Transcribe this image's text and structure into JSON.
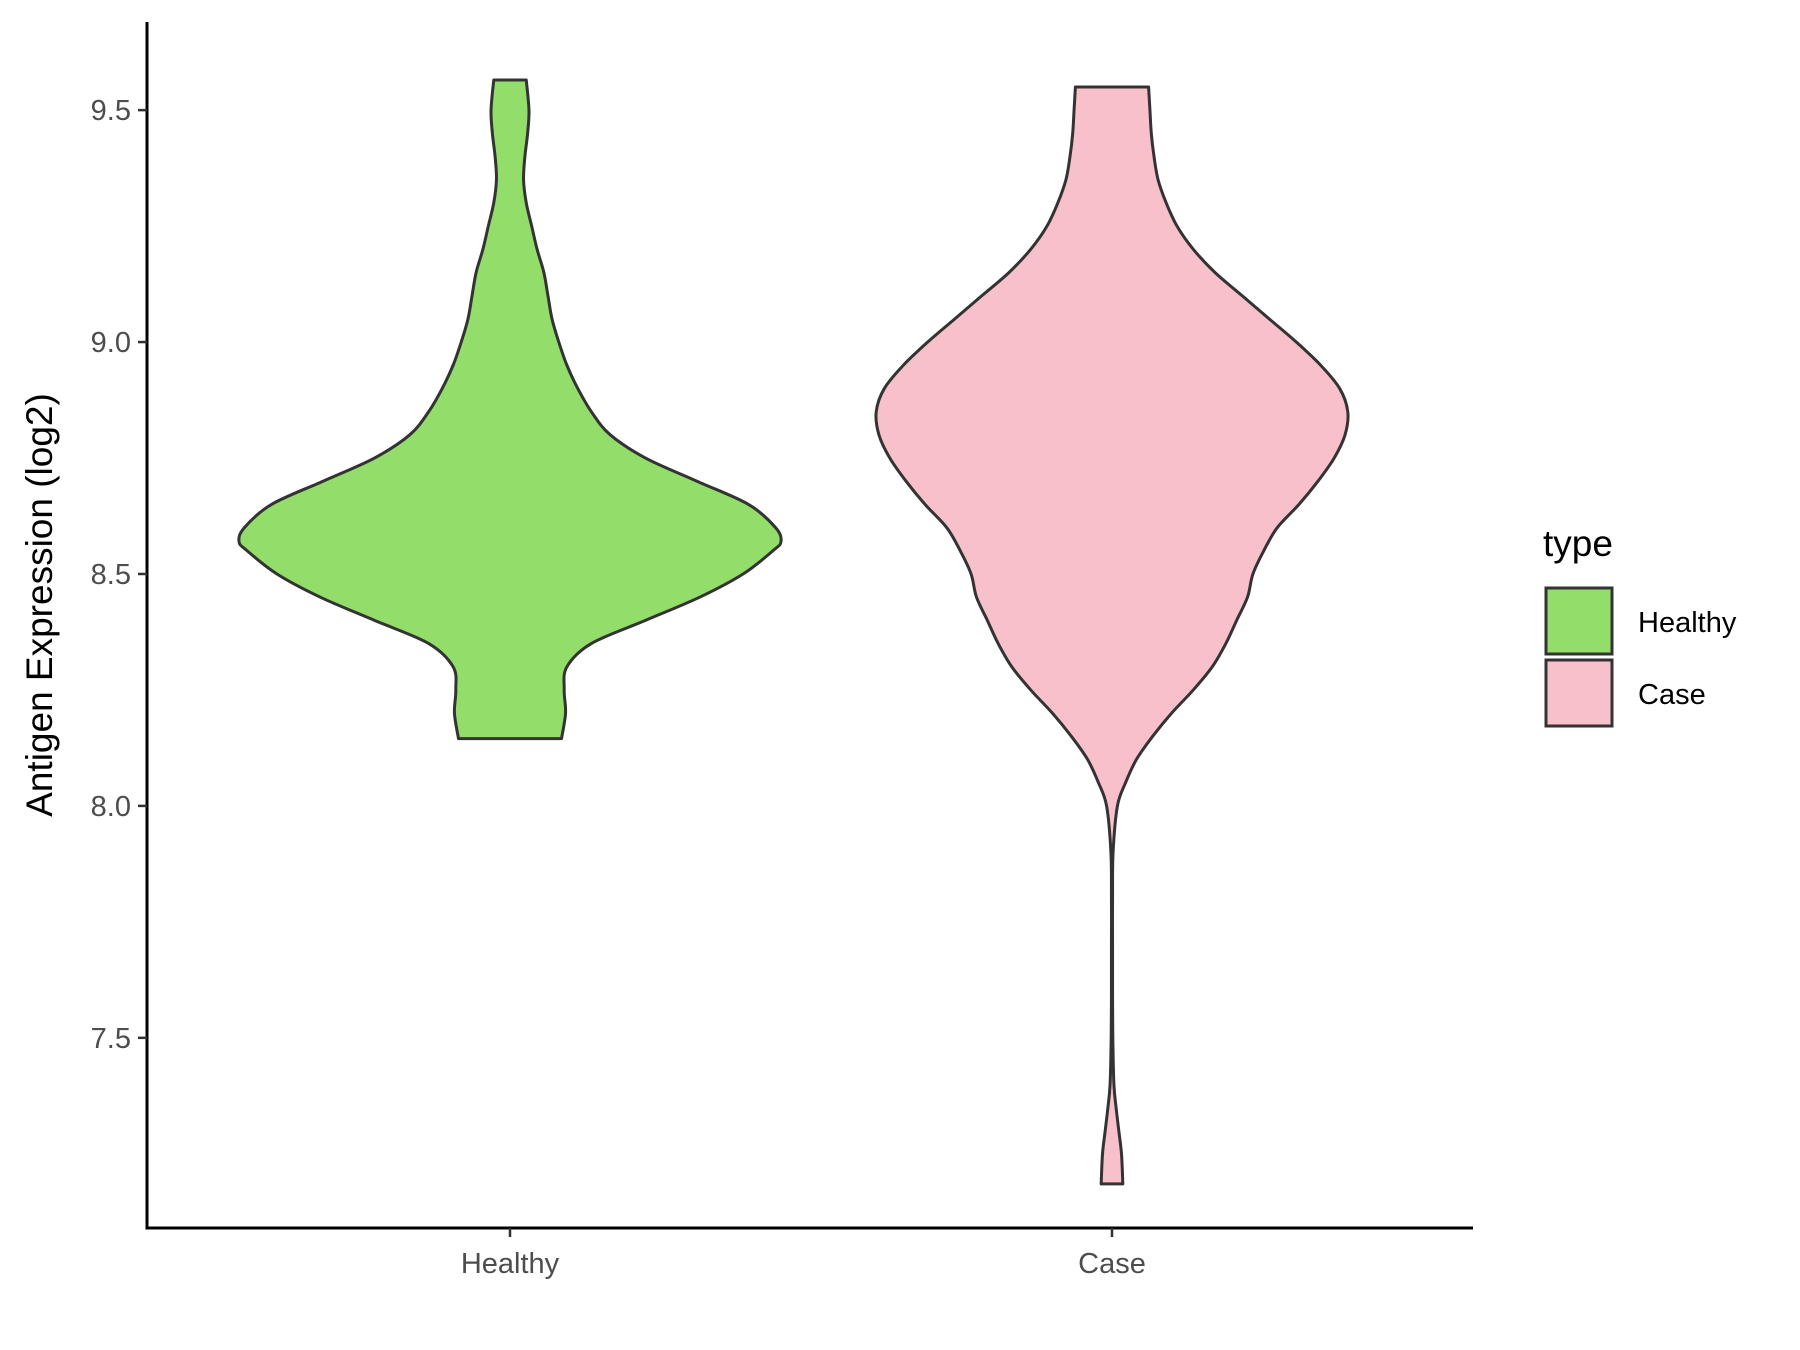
{
  "chart_data": {
    "type": "violin",
    "ylabel": "Antigen Expression (log2)",
    "xlabel": "",
    "categories": [
      "Healthy",
      "Case"
    ],
    "ylim": [
      7.09,
      9.69
    ],
    "yticks": [
      7.5,
      8.0,
      8.5,
      9.0,
      9.5
    ],
    "ytick_labels": [
      "7.5",
      "8.0",
      "8.5",
      "9.0",
      "9.5"
    ],
    "series": [
      {
        "name": "Healthy",
        "color": "#93dd6a",
        "min": 8.145,
        "max": 9.565,
        "density_profile": [
          [
            8.145,
            0.19
          ],
          [
            8.2,
            0.205
          ],
          [
            8.25,
            0.2
          ],
          [
            8.3,
            0.21
          ],
          [
            8.35,
            0.3
          ],
          [
            8.4,
            0.5
          ],
          [
            8.45,
            0.7
          ],
          [
            8.5,
            0.86
          ],
          [
            8.55,
            0.97
          ],
          [
            8.57,
            1.0
          ],
          [
            8.6,
            0.98
          ],
          [
            8.65,
            0.88
          ],
          [
            8.7,
            0.69
          ],
          [
            8.75,
            0.5
          ],
          [
            8.8,
            0.37
          ],
          [
            8.85,
            0.3
          ],
          [
            8.9,
            0.25
          ],
          [
            8.95,
            0.21
          ],
          [
            9.0,
            0.18
          ],
          [
            9.05,
            0.155
          ],
          [
            9.1,
            0.14
          ],
          [
            9.15,
            0.125
          ],
          [
            9.2,
            0.1
          ],
          [
            9.25,
            0.08
          ],
          [
            9.3,
            0.06
          ],
          [
            9.35,
            0.05
          ],
          [
            9.4,
            0.055
          ],
          [
            9.45,
            0.065
          ],
          [
            9.5,
            0.07
          ],
          [
            9.565,
            0.06
          ]
        ]
      },
      {
        "name": "Case",
        "color": "#f8c0cb",
        "min": 7.185,
        "max": 9.55,
        "density_profile": [
          [
            7.185,
            0.04
          ],
          [
            7.25,
            0.035
          ],
          [
            7.3,
            0.025
          ],
          [
            7.35,
            0.015
          ],
          [
            7.4,
            0.007
          ],
          [
            7.5,
            0.003
          ],
          [
            7.6,
            0.002
          ],
          [
            7.7,
            0.002
          ],
          [
            7.8,
            0.002
          ],
          [
            7.9,
            0.004
          ],
          [
            8.0,
            0.02
          ],
          [
            8.05,
            0.05
          ],
          [
            8.1,
            0.09
          ],
          [
            8.15,
            0.15
          ],
          [
            8.2,
            0.22
          ],
          [
            8.25,
            0.3
          ],
          [
            8.3,
            0.37
          ],
          [
            8.35,
            0.42
          ],
          [
            8.4,
            0.46
          ],
          [
            8.45,
            0.5
          ],
          [
            8.5,
            0.52
          ],
          [
            8.55,
            0.56
          ],
          [
            8.6,
            0.61
          ],
          [
            8.65,
            0.69
          ],
          [
            8.7,
            0.76
          ],
          [
            8.75,
            0.82
          ],
          [
            8.8,
            0.86
          ],
          [
            8.85,
            0.87
          ],
          [
            8.9,
            0.84
          ],
          [
            8.95,
            0.77
          ],
          [
            9.0,
            0.68
          ],
          [
            9.05,
            0.58
          ],
          [
            9.1,
            0.48
          ],
          [
            9.15,
            0.38
          ],
          [
            9.2,
            0.3
          ],
          [
            9.25,
            0.24
          ],
          [
            9.3,
            0.2
          ],
          [
            9.35,
            0.17
          ],
          [
            9.4,
            0.155
          ],
          [
            9.45,
            0.145
          ],
          [
            9.5,
            0.14
          ],
          [
            9.55,
            0.135
          ]
        ]
      }
    ],
    "legend": {
      "title": "type",
      "position": "right",
      "entries": [
        {
          "label": "Healthy",
          "color": "#93dd6a"
        },
        {
          "label": "Case",
          "color": "#f8c0cb"
        }
      ]
    },
    "grid": false
  }
}
